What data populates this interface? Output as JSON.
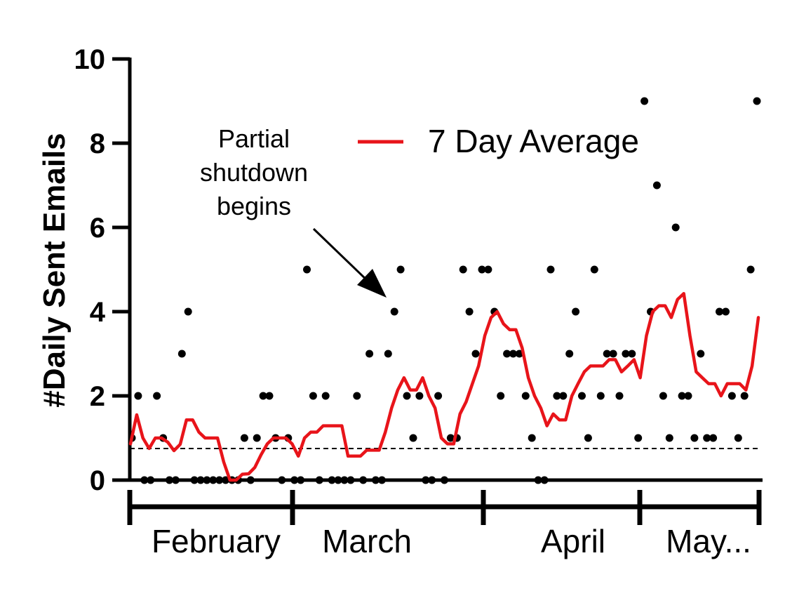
{
  "chart_data": {
    "type": "scatter",
    "ylabel": "#Daily  Sent  Emails",
    "ylim": [
      0,
      10
    ],
    "yticks": [
      "0",
      "2",
      "4",
      "6",
      "8",
      "10"
    ],
    "months": [
      "February",
      "March",
      "April",
      "May..."
    ],
    "annotation": [
      "Partial",
      "shutdown",
      "begins"
    ],
    "reference_line": 0.75,
    "series": [
      {
        "kind": "points",
        "values": [
          1,
          2,
          0,
          0,
          2,
          1,
          0,
          0,
          3,
          4,
          0,
          0,
          0,
          0,
          0,
          0,
          0,
          0,
          1,
          0,
          1,
          2,
          2,
          1,
          0,
          1,
          0,
          0,
          5,
          2,
          0,
          2,
          0,
          0,
          0,
          0,
          2,
          0,
          3,
          0,
          0,
          3,
          4,
          5,
          2,
          1,
          2,
          0,
          0,
          2,
          0,
          1,
          1,
          5,
          4,
          3,
          5,
          5,
          4,
          2,
          3,
          3,
          3,
          2,
          1,
          0,
          0,
          5,
          2,
          2,
          3,
          4,
          2,
          1,
          5,
          2,
          3,
          3,
          2,
          3,
          3,
          1,
          9,
          4,
          7,
          2,
          1,
          6,
          2,
          2,
          1,
          3,
          1,
          1,
          4,
          4,
          2,
          1,
          2,
          5,
          9
        ]
      },
      {
        "name": "7 Day Average",
        "kind": "line",
        "color": "#e8141a",
        "values": [
          0.86,
          1.55,
          1.0,
          0.75,
          1.0,
          1.0,
          0.9,
          0.7,
          0.85,
          1.43,
          1.43,
          1.14,
          1.0,
          1.0,
          1.0,
          0.43,
          0.0,
          0.0,
          0.14,
          0.15,
          0.3,
          0.6,
          0.86,
          1.0,
          1.0,
          1.0,
          0.86,
          0.57,
          1.0,
          1.14,
          1.14,
          1.29,
          1.29,
          1.29,
          1.29,
          0.57,
          0.57,
          0.57,
          0.71,
          0.71,
          0.71,
          1.14,
          1.71,
          2.14,
          2.43,
          2.14,
          2.14,
          2.43,
          2.0,
          1.71,
          1.0,
          0.86,
          0.86,
          1.57,
          1.86,
          2.29,
          2.71,
          3.43,
          3.86,
          4.0,
          3.71,
          3.57,
          3.57,
          3.14,
          2.43,
          2.0,
          1.71,
          1.29,
          1.57,
          1.43,
          1.43,
          2.0,
          2.29,
          2.57,
          2.71,
          2.71,
          2.71,
          2.86,
          2.86,
          2.57,
          2.71,
          2.86,
          2.43,
          3.43,
          4.0,
          4.14,
          4.14,
          3.86,
          4.29,
          4.43,
          3.43,
          2.57,
          2.43,
          2.29,
          2.29,
          2.0,
          2.29,
          2.29,
          2.29,
          2.14,
          2.71,
          3.86
        ]
      }
    ]
  }
}
